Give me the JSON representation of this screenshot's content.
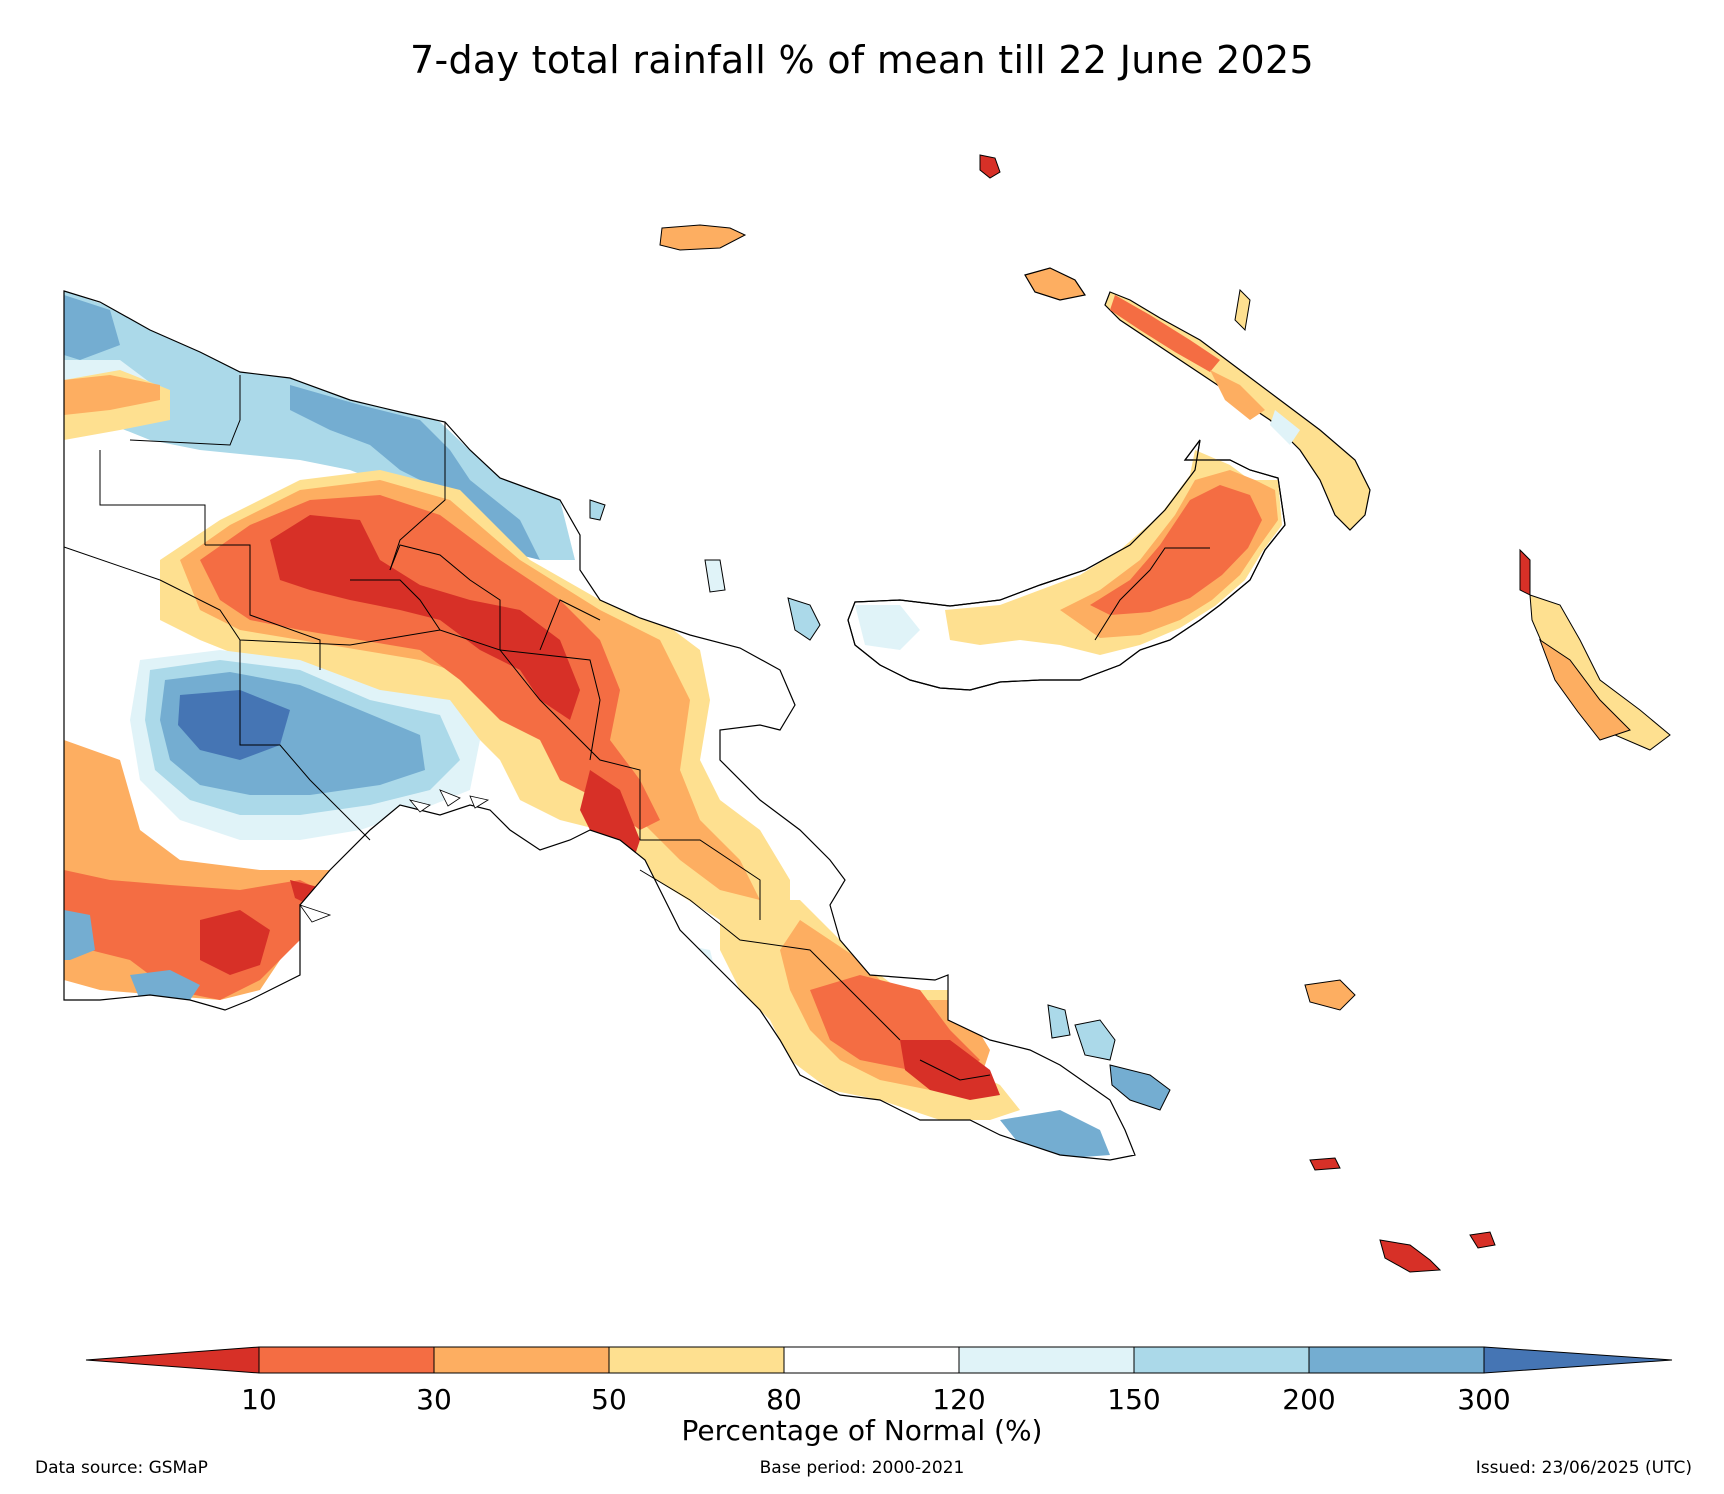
{
  "title": "7-day total rainfall % of mean till 22 June 2025",
  "colorbar": {
    "label": "Percentage of Normal (%)",
    "ticks": [
      "10",
      "30",
      "50",
      "80",
      "120",
      "150",
      "200",
      "300"
    ],
    "colors": [
      "#d73027",
      "#f46d43",
      "#fdae61",
      "#fee090",
      "#ffffff",
      "#e0f3f8",
      "#abd9e9",
      "#74add1",
      "#4575b4"
    ]
  },
  "footer": {
    "source": "Data source: GSMaP",
    "base_period": "Base period: 2000-2021",
    "issued": "Issued: 23/06/2025 (UTC)"
  },
  "map": {
    "region": "Papua New Guinea",
    "province_boundaries": true,
    "palette": {
      "lt10": "#d73027",
      "10_30": "#f46d43",
      "30_50": "#fdae61",
      "50_80": "#fee090",
      "80_120": "#ffffff",
      "120_150": "#e0f3f8",
      "150_200": "#abd9e9",
      "200_300": "#74add1",
      "gt300": "#4575b4"
    }
  }
}
